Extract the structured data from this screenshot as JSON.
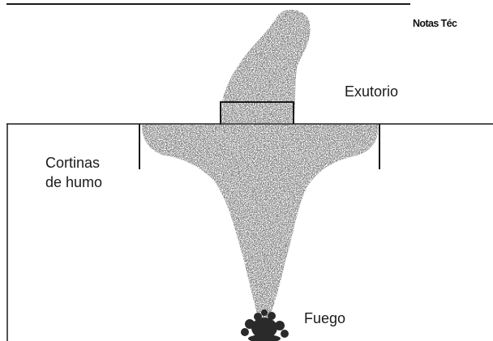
{
  "header": {
    "note": "Notas Téc"
  },
  "labels": {
    "vent": "Exutorio",
    "curtains_line1": "Cortinas",
    "curtains_line2": "de humo",
    "fire": "Fuego"
  },
  "colors": {
    "line": "#1a1a1a",
    "smoke": "#555555",
    "background": "#ffffff"
  },
  "icons": [
    "smoke-plume-icon",
    "fire-icon"
  ]
}
